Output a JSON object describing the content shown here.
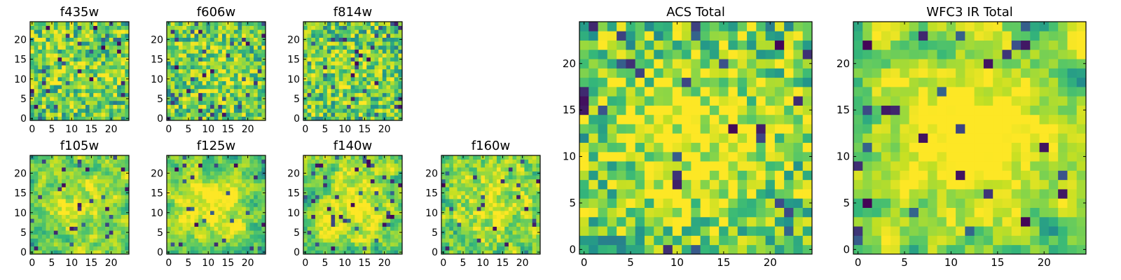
{
  "chart_data": [
    {
      "type": "heatmap",
      "title": "f435w",
      "grid_size": 25,
      "xlim": [
        0,
        24
      ],
      "ylim": [
        0,
        24
      ],
      "xticks": [
        0,
        5,
        10,
        15,
        20
      ],
      "yticks": [
        0,
        5,
        10,
        15,
        20
      ],
      "pattern": "noise",
      "seed": 11,
      "peak": 0.1
    },
    {
      "type": "heatmap",
      "title": "f606w",
      "grid_size": 25,
      "xlim": [
        0,
        24
      ],
      "ylim": [
        0,
        24
      ],
      "xticks": [
        0,
        5,
        10,
        15,
        20
      ],
      "yticks": [
        0,
        5,
        10,
        15,
        20
      ],
      "pattern": "noise",
      "seed": 23,
      "peak": 0.15
    },
    {
      "type": "heatmap",
      "title": "f814w",
      "grid_size": 25,
      "xlim": [
        0,
        24
      ],
      "ylim": [
        0,
        24
      ],
      "xticks": [
        0,
        5,
        10,
        15,
        20
      ],
      "yticks": [
        0,
        5,
        10,
        15,
        20
      ],
      "pattern": "noise",
      "seed": 37,
      "peak": 0.1
    },
    {
      "type": "heatmap",
      "title": "f105w",
      "grid_size": 25,
      "xlim": [
        0,
        24
      ],
      "ylim": [
        0,
        24
      ],
      "xticks": [
        0,
        5,
        10,
        15,
        20
      ],
      "yticks": [
        0,
        5,
        10,
        15,
        20
      ],
      "pattern": "smooth",
      "seed": 41,
      "peak": 0.35
    },
    {
      "type": "heatmap",
      "title": "f125w",
      "grid_size": 25,
      "xlim": [
        0,
        24
      ],
      "ylim": [
        0,
        24
      ],
      "xticks": [
        0,
        5,
        10,
        15,
        20
      ],
      "yticks": [
        0,
        5,
        10,
        15,
        20
      ],
      "pattern": "smooth",
      "seed": 53,
      "peak": 0.4
    },
    {
      "type": "heatmap",
      "title": "f140w",
      "grid_size": 25,
      "xlim": [
        0,
        24
      ],
      "ylim": [
        0,
        24
      ],
      "xticks": [
        0,
        5,
        10,
        15,
        20
      ],
      "yticks": [
        0,
        5,
        10,
        15,
        20
      ],
      "pattern": "smooth",
      "seed": 67,
      "peak": 0.35
    },
    {
      "type": "heatmap",
      "title": "f160w",
      "grid_size": 25,
      "xlim": [
        0,
        24
      ],
      "ylim": [
        0,
        24
      ],
      "xticks": [
        0,
        5,
        10,
        15,
        20
      ],
      "yticks": [
        0,
        5,
        10,
        15,
        20
      ],
      "pattern": "mid",
      "seed": 79,
      "peak": 0.3
    },
    {
      "type": "heatmap",
      "title": "ACS Total",
      "grid_size": 25,
      "xlim": [
        0,
        24
      ],
      "ylim": [
        0,
        24
      ],
      "xticks": [
        0,
        5,
        10,
        15,
        20
      ],
      "yticks": [
        0,
        5,
        10,
        15,
        20
      ],
      "pattern": "blocky",
      "seed": 97,
      "peak": 0.35
    },
    {
      "type": "heatmap",
      "title": "WFC3 IR Total",
      "grid_size": 25,
      "xlim": [
        0,
        24
      ],
      "ylim": [
        0,
        24
      ],
      "xticks": [
        0,
        5,
        10,
        15,
        20
      ],
      "yticks": [
        0,
        5,
        10,
        15,
        20
      ],
      "pattern": "smooth-blocky",
      "seed": 113,
      "peak": 0.55
    }
  ],
  "colormap": [
    "#440154",
    "#3b528b",
    "#21918c",
    "#35b779",
    "#5ec962",
    "#90d743",
    "#c2df23",
    "#fde725"
  ]
}
